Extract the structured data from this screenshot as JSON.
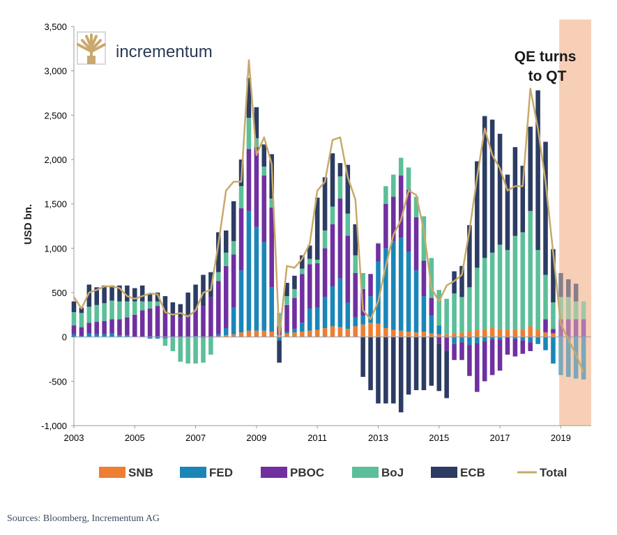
{
  "logo": {
    "text": "incrementum"
  },
  "source": "Sources: Bloomberg, Incrementum AG",
  "annotation": "QE turns\nto QT",
  "colors": {
    "SNB": "#ee7e32",
    "FED": "#1a86b8",
    "PBOC": "#7030a0",
    "BoJ": "#5cbf99",
    "ECB": "#2c3c63",
    "Total": "#c8a96b",
    "forecast_band": "#f7cfb7",
    "logo_gold": "#c9a96e"
  },
  "chart_data": {
    "type": "bar",
    "stacked": true,
    "title": "",
    "xlabel": "",
    "ylabel": "USD bn.",
    "ylim": [
      -1000,
      3500
    ],
    "yticks": [
      -1000,
      -500,
      0,
      500,
      1000,
      1500,
      2000,
      2500,
      3000,
      3500
    ],
    "ytick_labels": [
      "-1,000",
      "-500",
      "0",
      "500",
      "1,000",
      "1,500",
      "2,000",
      "2,500",
      "3,000",
      "3,500"
    ],
    "xlim": [
      2003,
      2020
    ],
    "xticks": [
      2003,
      2005,
      2007,
      2009,
      2011,
      2013,
      2015,
      2017,
      2019
    ],
    "xtick_labels": [
      "2003",
      "2005",
      "2007",
      "2009",
      "2011",
      "2013",
      "2015",
      "2017",
      "2019"
    ],
    "forecast_start": 2018.95,
    "legend_location": "bottom",
    "legend": [
      "SNB",
      "FED",
      "PBOC",
      "BoJ",
      "ECB",
      "Total"
    ],
    "x": [
      2003.0,
      2003.25,
      2003.5,
      2003.75,
      2004.0,
      2004.25,
      2004.5,
      2004.75,
      2005.0,
      2005.25,
      2005.5,
      2005.75,
      2006.0,
      2006.25,
      2006.5,
      2006.75,
      2007.0,
      2007.25,
      2007.5,
      2007.75,
      2008.0,
      2008.25,
      2008.5,
      2008.75,
      2009.0,
      2009.25,
      2009.5,
      2009.75,
      2010.0,
      2010.25,
      2010.5,
      2010.75,
      2011.0,
      2011.25,
      2011.5,
      2011.75,
      2012.0,
      2012.25,
      2012.5,
      2012.75,
      2013.0,
      2013.25,
      2013.5,
      2013.75,
      2014.0,
      2014.25,
      2014.5,
      2014.75,
      2015.0,
      2015.25,
      2015.5,
      2015.75,
      2016.0,
      2016.25,
      2016.5,
      2016.75,
      2017.0,
      2017.25,
      2017.5,
      2017.75,
      2018.0,
      2018.25,
      2018.5,
      2018.75,
      2019.0,
      2019.25,
      2019.5,
      2019.75
    ],
    "series": [
      {
        "name": "SNB",
        "values": [
          0,
          0,
          0,
          0,
          0,
          0,
          0,
          0,
          0,
          0,
          0,
          0,
          0,
          0,
          0,
          0,
          0,
          0,
          0,
          10,
          20,
          30,
          50,
          70,
          70,
          70,
          60,
          20,
          40,
          50,
          60,
          70,
          80,
          100,
          120,
          110,
          90,
          120,
          140,
          160,
          150,
          100,
          80,
          70,
          60,
          50,
          60,
          40,
          30,
          30,
          40,
          50,
          60,
          80,
          90,
          100,
          90,
          80,
          90,
          80,
          120,
          80,
          50,
          40,
          0,
          0,
          0,
          0
        ]
      },
      {
        "name": "FED",
        "values": [
          30,
          10,
          40,
          30,
          30,
          40,
          20,
          20,
          0,
          0,
          -20,
          -20,
          -20,
          0,
          0,
          0,
          10,
          -10,
          0,
          20,
          80,
          300,
          700,
          1350,
          1170,
          1000,
          500,
          -40,
          20,
          40,
          100,
          250,
          250,
          350,
          450,
          550,
          300,
          100,
          100,
          300,
          700,
          900,
          1000,
          1050,
          900,
          700,
          400,
          200,
          100,
          -10,
          -80,
          -60,
          -90,
          -70,
          -50,
          -30,
          -30,
          0,
          -20,
          -40,
          -60,
          -80,
          -150,
          -300,
          -430,
          -450,
          -470,
          -480
        ]
      },
      {
        "name": "PBOC",
        "values": [
          100,
          100,
          120,
          140,
          150,
          160,
          180,
          200,
          250,
          300,
          320,
          350,
          280,
          230,
          220,
          250,
          300,
          350,
          450,
          600,
          700,
          600,
          700,
          700,
          900,
          750,
          900,
          100,
          300,
          350,
          550,
          500,
          500,
          550,
          700,
          900,
          750,
          500,
          300,
          250,
          200,
          500,
          500,
          700,
          700,
          600,
          400,
          200,
          -80,
          -150,
          -180,
          -200,
          -350,
          -550,
          -450,
          -400,
          -350,
          -200,
          -200,
          -150,
          -100,
          0,
          150,
          50,
          200,
          200,
          200,
          200
        ]
      },
      {
        "name": "BoJ",
        "values": [
          150,
          160,
          180,
          190,
          200,
          210,
          200,
          180,
          150,
          100,
          80,
          50,
          -80,
          -160,
          -280,
          -300,
          -300,
          -280,
          -200,
          100,
          150,
          150,
          250,
          350,
          100,
          100,
          100,
          150,
          100,
          100,
          60,
          60,
          40,
          200,
          200,
          250,
          250,
          200,
          180,
          0,
          10,
          200,
          250,
          200,
          250,
          230,
          500,
          450,
          400,
          400,
          450,
          400,
          500,
          700,
          800,
          850,
          950,
          900,
          1050,
          1100,
          1300,
          900,
          500,
          300,
          250,
          250,
          200,
          200
        ]
      },
      {
        "name": "ECB",
        "values": [
          120,
          60,
          250,
          200,
          200,
          170,
          180,
          180,
          150,
          180,
          80,
          100,
          180,
          160,
          150,
          250,
          280,
          350,
          280,
          450,
          250,
          450,
          300,
          450,
          350,
          250,
          500,
          -250,
          150,
          150,
          150,
          150,
          700,
          600,
          600,
          150,
          550,
          350,
          -450,
          -600,
          -750,
          -750,
          -750,
          -850,
          -650,
          -600,
          -600,
          -550,
          -530,
          -530,
          250,
          350,
          700,
          1200,
          1600,
          1500,
          1250,
          850,
          1000,
          750,
          950,
          1800,
          1500,
          600,
          270,
          200,
          200,
          0
        ]
      },
      {
        "name": "Total",
        "type": "line",
        "values": [
          450,
          320,
          500,
          530,
          570,
          570,
          550,
          460,
          430,
          460,
          490,
          480,
          280,
          250,
          270,
          230,
          300,
          500,
          530,
          1050,
          1650,
          1750,
          1750,
          3120,
          2050,
          2250,
          1950,
          0,
          800,
          780,
          880,
          1050,
          1650,
          1750,
          2220,
          2250,
          1800,
          1550,
          300,
          200,
          400,
          800,
          1150,
          1320,
          1650,
          1600,
          1200,
          550,
          400,
          580,
          630,
          700,
          1200,
          1800,
          2350,
          2050,
          1900,
          1650,
          1700,
          1700,
          2800,
          2350,
          1750,
          950,
          150,
          -30,
          -200,
          -400
        ]
      }
    ]
  }
}
